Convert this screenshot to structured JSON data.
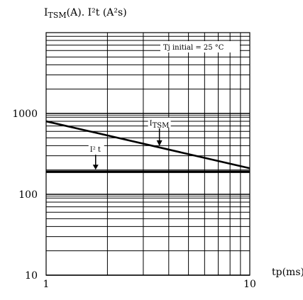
{
  "chart_data": {
    "type": "line",
    "title": {
      "prefix": "I",
      "sub": "TSM",
      "rest": "(A). I²t (A²s)"
    },
    "xlabel": "tp(ms)",
    "annotation": "Tj initial = 25 °C",
    "x_scale": "log",
    "y_scale": "log",
    "xlim": [
      1,
      10
    ],
    "ylim": [
      10,
      10000
    ],
    "x_ticks": [
      {
        "value": 1,
        "label": "1"
      },
      {
        "value": 10,
        "label": "10"
      }
    ],
    "y_ticks": [
      {
        "value": 10,
        "label": "10"
      },
      {
        "value": 100,
        "label": "100"
      },
      {
        "value": 1000,
        "label": "1000"
      }
    ],
    "grid": true,
    "series": [
      {
        "name": "ITSM",
        "label_main": "I",
        "label_sub": "TSM",
        "x": [
          1,
          10
        ],
        "y": [
          800,
          210
        ]
      },
      {
        "name": "I² t",
        "label_main": "I² t",
        "label_sub": "",
        "x": [
          1,
          10
        ],
        "y": [
          190,
          190
        ]
      }
    ]
  }
}
